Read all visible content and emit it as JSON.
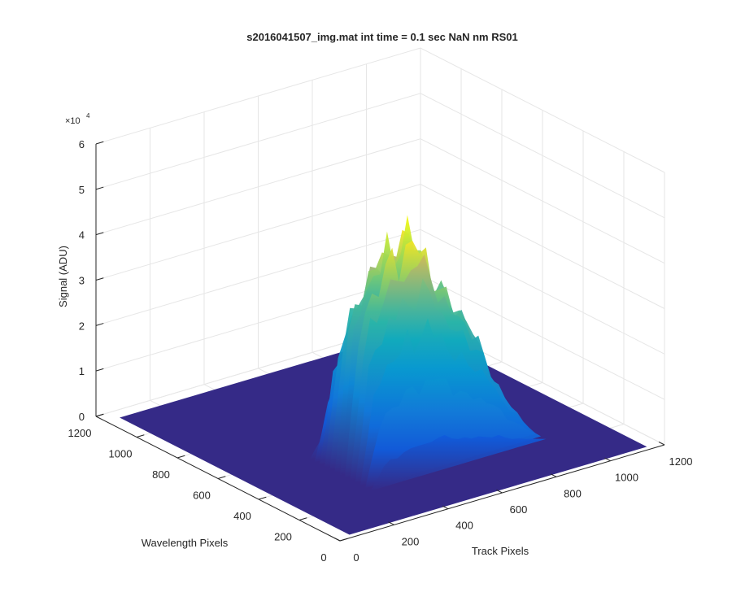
{
  "chart_data": {
    "type": "surface",
    "title": "s2016041507_img.mat int time = 0.1 sec  NaN nm RS01",
    "zlabel": "Signal (ADU)",
    "xlabel": "Track Pixels",
    "ylabel": "Wavelength Pixels",
    "exponent_base": "×10",
    "exponent_power": "4",
    "xlim": [
      0,
      1200
    ],
    "ylim": [
      0,
      1200
    ],
    "zlim": [
      0,
      60000
    ],
    "x_ticks": [
      "0",
      "200",
      "400",
      "600",
      "800",
      "1000",
      "1200"
    ],
    "y_ticks": [
      "0",
      "200",
      "400",
      "600",
      "800",
      "1000",
      "1200"
    ],
    "z_ticks": [
      "0",
      "1",
      "2",
      "3",
      "4",
      "5",
      "6"
    ],
    "grid": true,
    "colormap": "parula",
    "floor_color": "#352a87",
    "signal_region": {
      "track_pixels": [
        300,
        950
      ],
      "wavelength_pixels": [
        250,
        550
      ],
      "peak_signal": 50000
    },
    "profile_along_track": {
      "x": [
        300,
        325,
        350,
        375,
        400,
        425,
        450,
        475,
        500,
        525,
        550,
        575,
        600,
        625,
        650,
        675,
        700,
        725,
        750,
        775,
        800,
        825,
        850,
        875,
        900,
        925,
        950
      ],
      "z": [
        0,
        14000,
        30000,
        36000,
        38000,
        41000,
        44000,
        48000,
        43000,
        46000,
        50000,
        47000,
        44000,
        38000,
        36000,
        35000,
        32000,
        29000,
        27000,
        25000,
        20000,
        15000,
        12000,
        9000,
        6000,
        3000,
        0
      ]
    }
  }
}
